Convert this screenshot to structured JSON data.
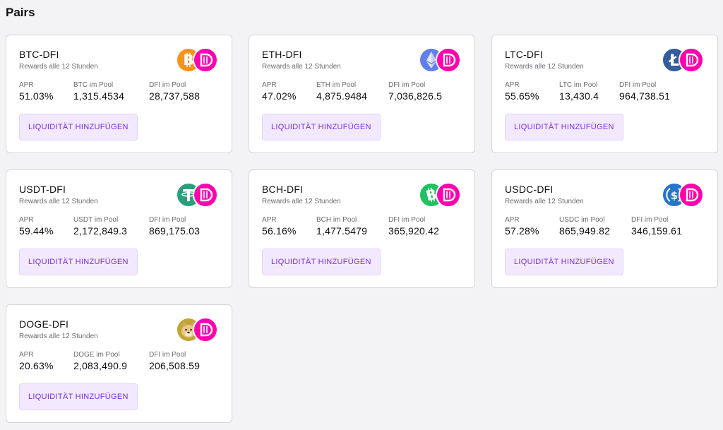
{
  "page": {
    "title": "Pairs"
  },
  "colors": {
    "dfi": "#ff00af",
    "btc": "#f7931a",
    "eth": "#627eea",
    "ltc": "#345d9d",
    "usdt": "#26a17b",
    "bch": "#1fc160",
    "usdc": "#2775ca",
    "doge": "#c2a633",
    "button_bg": "#f3e9ff",
    "button_text": "#7a2fe6"
  },
  "pairs": [
    {
      "name": "BTC-DFI",
      "subtitle": "Rewards alle 12 Stunden",
      "coin_icon": "bitcoin-icon",
      "apr_label": "APR",
      "apr": "51.03%",
      "token_label": "BTC im Pool",
      "token_amount": "1,315.4534",
      "dfi_label": "DFI im Pool",
      "dfi_amount": "28,737,588",
      "button_label": "LIQUIDITÄT HINZUFÜGEN"
    },
    {
      "name": "ETH-DFI",
      "subtitle": "Rewards alle 12 Stunden",
      "coin_icon": "ethereum-icon",
      "apr_label": "APR",
      "apr": "47.02%",
      "token_label": "ETH im Pool",
      "token_amount": "4,875.9484",
      "dfi_label": "DFI im Pool",
      "dfi_amount": "7,036,826.5",
      "button_label": "LIQUIDITÄT HINZUFÜGEN"
    },
    {
      "name": "LTC-DFI",
      "subtitle": "Rewards alle 12 Stunden",
      "coin_icon": "litecoin-icon",
      "apr_label": "APR",
      "apr": "55.65%",
      "token_label": "LTC im Pool",
      "token_amount": "13,430.4",
      "dfi_label": "DFI im Pool",
      "dfi_amount": "964,738.51",
      "button_label": "LIQUIDITÄT HINZUFÜGEN"
    },
    {
      "name": "USDT-DFI",
      "subtitle": "Rewards alle 12 Stunden",
      "coin_icon": "tether-icon",
      "apr_label": "APR",
      "apr": "59.44%",
      "token_label": "USDT im Pool",
      "token_amount": "2,172,849.3",
      "dfi_label": "DFI im Pool",
      "dfi_amount": "869,175.03",
      "button_label": "LIQUIDITÄT HINZUFÜGEN"
    },
    {
      "name": "BCH-DFI",
      "subtitle": "Rewards alle 12 Stunden",
      "coin_icon": "bitcoin-cash-icon",
      "apr_label": "APR",
      "apr": "56.16%",
      "token_label": "BCH im Pool",
      "token_amount": "1,477.5479",
      "dfi_label": "DFI im Pool",
      "dfi_amount": "365,920.42",
      "button_label": "LIQUIDITÄT HINZUFÜGEN"
    },
    {
      "name": "USDC-DFI",
      "subtitle": "Rewards alle 12 Stunden",
      "coin_icon": "usd-coin-icon",
      "apr_label": "APR",
      "apr": "57.28%",
      "token_label": "USDC im Pool",
      "token_amount": "865,949.82",
      "dfi_label": "DFI im Pool",
      "dfi_amount": "346,159.61",
      "button_label": "LIQUIDITÄT HINZUFÜGEN"
    },
    {
      "name": "DOGE-DFI",
      "subtitle": "Rewards alle 12 Stunden",
      "coin_icon": "dogecoin-icon",
      "apr_label": "APR",
      "apr": "20.63%",
      "token_label": "DOGE im Pool",
      "token_amount": "2,083,490.9",
      "dfi_label": "DFI im Pool",
      "dfi_amount": "206,508.59",
      "button_label": "LIQUIDITÄT HINZUFÜGEN"
    }
  ]
}
